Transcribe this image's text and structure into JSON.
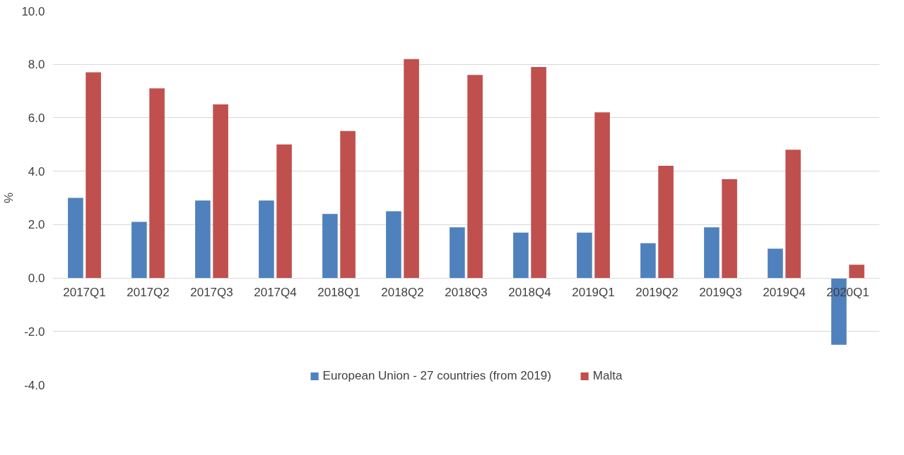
{
  "chart_data": {
    "type": "bar",
    "ylabel": "%",
    "categories": [
      "2017Q1",
      "2017Q2",
      "2017Q3",
      "2017Q4",
      "2018Q1",
      "2018Q2",
      "2018Q3",
      "2018Q4",
      "2019Q1",
      "2019Q2",
      "2019Q3",
      "2019Q4",
      "2020Q1"
    ],
    "series": [
      {
        "name": "European Union - 27 countries (from 2019)",
        "color": "#4f81bd",
        "values": [
          3.0,
          2.1,
          2.9,
          2.9,
          2.4,
          2.5,
          1.9,
          1.7,
          1.7,
          1.3,
          1.9,
          1.1,
          -2.5
        ]
      },
      {
        "name": "Malta",
        "color": "#c0504d",
        "values": [
          7.7,
          7.1,
          6.5,
          5.0,
          5.5,
          8.2,
          7.6,
          7.9,
          6.2,
          4.2,
          3.7,
          4.8,
          0.5
        ]
      }
    ],
    "ylim": [
      -4,
      10
    ],
    "yticks": [
      {
        "value": -4,
        "label": "-4.0"
      },
      {
        "value": -2,
        "label": "-2.0"
      },
      {
        "value": 0,
        "label": "0.0"
      },
      {
        "value": 2,
        "label": "2.0"
      },
      {
        "value": 4,
        "label": "4.0"
      },
      {
        "value": 6,
        "label": "6.0"
      },
      {
        "value": 8,
        "label": "8.0"
      },
      {
        "value": 10,
        "label": "10.0"
      }
    ],
    "grid": "y",
    "legend": "bottom"
  }
}
